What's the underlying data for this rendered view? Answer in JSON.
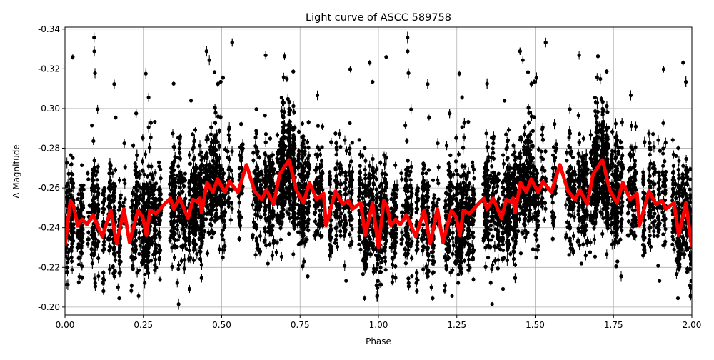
{
  "chart_data": {
    "type": "scatter",
    "title": "Light curve of ASCC 589758",
    "xlabel": "Phase",
    "ylabel": "Δ Magnitude",
    "xlim": [
      0,
      2
    ],
    "ylim": [
      -0.196,
      -0.341
    ],
    "y_inverted": true,
    "grid": true,
    "xticks": [
      "0.00",
      "0.25",
      "0.50",
      "0.75",
      "1.00",
      "1.25",
      "1.50",
      "1.75",
      "2.00"
    ],
    "yticks": [
      "-0.34",
      "-0.32",
      "-0.30",
      "-0.28",
      "-0.26",
      "-0.24",
      "-0.22",
      "-0.20"
    ],
    "colors": {
      "points": "#000000",
      "model": "#ff0000",
      "grid": "#b0b0b0"
    },
    "series": [
      {
        "type": "errorbar-scatter",
        "color": "#000000"
      },
      {
        "type": "line",
        "color": "#ff0000",
        "x": [
          0,
          0.017,
          0.028,
          0.04,
          0.055,
          0.07,
          0.089,
          0.119,
          0.146,
          0.165,
          0.188,
          0.206,
          0.233,
          0.248,
          0.26,
          0.271,
          0.29,
          0.321,
          0.336,
          0.347,
          0.366,
          0.393,
          0.408,
          0.423,
          0.43,
          0.436,
          0.453,
          0.472,
          0.487,
          0.51,
          0.525,
          0.552,
          0.579,
          0.605,
          0.628,
          0.643,
          0.666,
          0.685,
          0.715,
          0.738,
          0.761,
          0.78,
          0.803,
          0.825,
          0.833,
          0.863,
          0.886,
          0.905,
          0.917,
          0.943,
          0.958,
          0.981,
          1.0,
          1.017,
          1.028,
          1.04,
          1.055,
          1.07,
          1.089,
          1.119,
          1.146,
          1.165,
          1.188,
          1.206,
          1.233,
          1.248,
          1.26,
          1.271,
          1.29,
          1.321,
          1.336,
          1.347,
          1.366,
          1.393,
          1.408,
          1.423,
          1.43,
          1.436,
          1.453,
          1.472,
          1.487,
          1.51,
          1.525,
          1.552,
          1.579,
          1.605,
          1.628,
          1.643,
          1.666,
          1.685,
          1.715,
          1.738,
          1.761,
          1.78,
          1.803,
          1.825,
          1.833,
          1.863,
          1.886,
          1.905,
          1.917,
          1.943,
          1.958,
          1.981,
          2.0
        ],
        "y": [
          -0.2307,
          -0.2536,
          -0.2506,
          -0.241,
          -0.2442,
          -0.2416,
          -0.2464,
          -0.2355,
          -0.2488,
          -0.232,
          -0.2494,
          -0.2326,
          -0.2488,
          -0.2452,
          -0.2361,
          -0.2488,
          -0.247,
          -0.2524,
          -0.2548,
          -0.2494,
          -0.2548,
          -0.2446,
          -0.2542,
          -0.253,
          -0.2548,
          -0.2476,
          -0.2627,
          -0.2578,
          -0.2645,
          -0.2578,
          -0.2632,
          -0.2578,
          -0.2717,
          -0.2584,
          -0.2542,
          -0.259,
          -0.2518,
          -0.2669,
          -0.2741,
          -0.259,
          -0.2524,
          -0.2627,
          -0.2542,
          -0.2572,
          -0.241,
          -0.2584,
          -0.2518,
          -0.2536,
          -0.2494,
          -0.2524,
          -0.2361,
          -0.2524,
          -0.2301,
          -0.2536,
          -0.2506,
          -0.241,
          -0.2442,
          -0.2416,
          -0.2464,
          -0.2355,
          -0.2488,
          -0.232,
          -0.2494,
          -0.2326,
          -0.2488,
          -0.2452,
          -0.2361,
          -0.2488,
          -0.247,
          -0.2524,
          -0.2548,
          -0.2494,
          -0.2548,
          -0.2446,
          -0.2542,
          -0.253,
          -0.2548,
          -0.2476,
          -0.2627,
          -0.2578,
          -0.2645,
          -0.2578,
          -0.2632,
          -0.2578,
          -0.2717,
          -0.2584,
          -0.2542,
          -0.259,
          -0.2518,
          -0.2669,
          -0.2741,
          -0.259,
          -0.2524,
          -0.2627,
          -0.2542,
          -0.2572,
          -0.241,
          -0.2584,
          -0.2518,
          -0.2536,
          -0.2494,
          -0.2524,
          -0.2361,
          -0.2524,
          -0.2301
        ]
      }
    ]
  }
}
